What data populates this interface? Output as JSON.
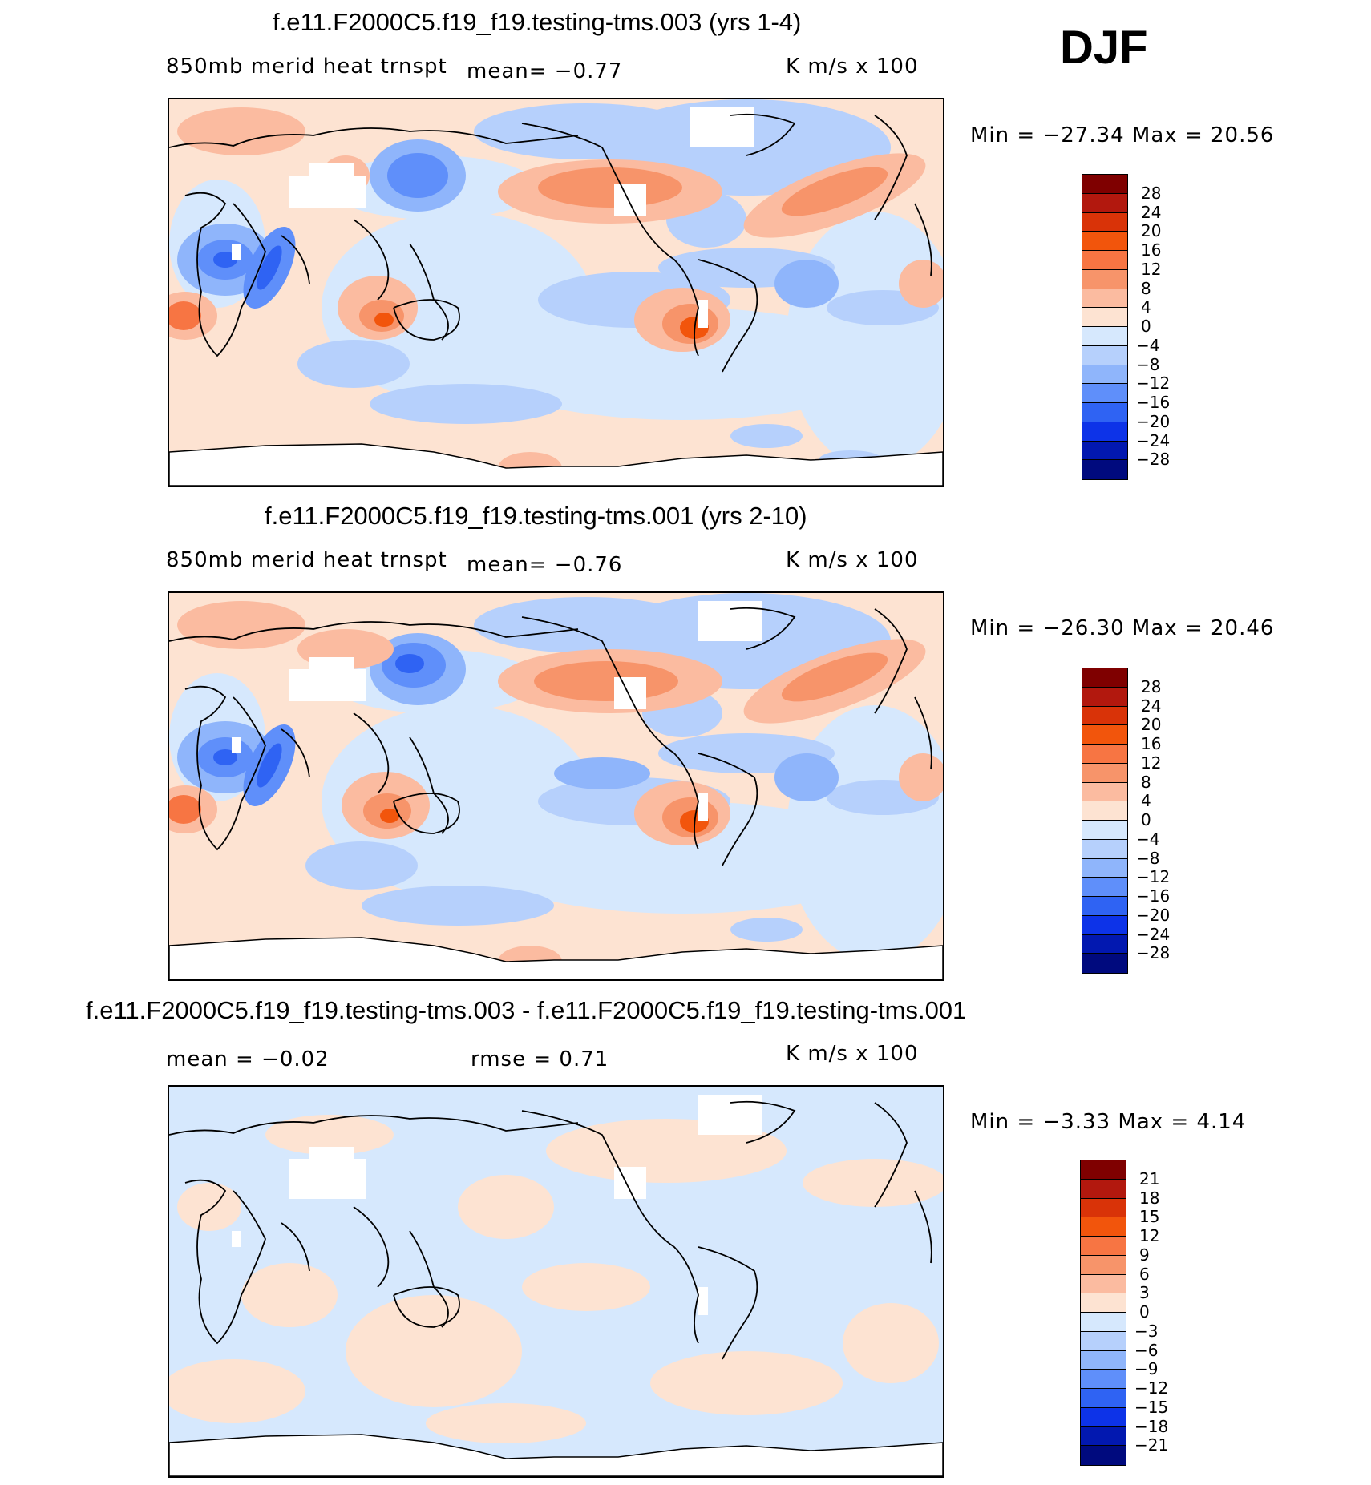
{
  "season": "DJF",
  "panels": [
    {
      "title": "f.e11.F2000C5.f19_f19.testing-tms.003 (yrs 1-4)",
      "left_label": "850mb merid heat trnspt",
      "mid_label": "mean=   −0.77",
      "units": "K m/s x 100",
      "minmax": "Min = −27.34 Max =  20.56",
      "colorbar_labels": [
        "28",
        "24",
        "20",
        "16",
        "12",
        "8",
        "4",
        "0",
        "−4",
        "−8",
        "−12",
        "−16",
        "−20",
        "−24",
        "−28"
      ]
    },
    {
      "title": "f.e11.F2000C5.f19_f19.testing-tms.001 (yrs 2-10)",
      "left_label": "850mb merid heat trnspt",
      "mid_label": "mean=   −0.76",
      "units": "K m/s x 100",
      "minmax": "Min = −26.30 Max =  20.46",
      "colorbar_labels": [
        "28",
        "24",
        "20",
        "16",
        "12",
        "8",
        "4",
        "0",
        "−4",
        "−8",
        "−12",
        "−16",
        "−20",
        "−24",
        "−28"
      ]
    },
    {
      "title": "f.e11.F2000C5.f19_f19.testing-tms.003 - f.e11.F2000C5.f19_f19.testing-tms.001",
      "left_label": "mean =   −0.02",
      "mid_label": "rmse =    0.71",
      "units": "K m/s x 100",
      "minmax": "Min =   −3.33 Max =   4.14",
      "colorbar_labels": [
        "21",
        "18",
        "15",
        "12",
        "9",
        "6",
        "3",
        "0",
        "−3",
        "−6",
        "−9",
        "−12",
        "−15",
        "−18",
        "−21"
      ]
    }
  ],
  "colors": {
    "colorbar": [
      "#7f0000",
      "#b2180e",
      "#d93308",
      "#f2550c",
      "#f77543",
      "#f7946a",
      "#fbbba0",
      "#fde3d2",
      "#d6e8fd",
      "#b6d0fc",
      "#8fb5fb",
      "#5f8ffa",
      "#2f63f3",
      "#0d33e8",
      "#0218b0",
      "#000a7e"
    ],
    "land_outline": "#000000"
  }
}
